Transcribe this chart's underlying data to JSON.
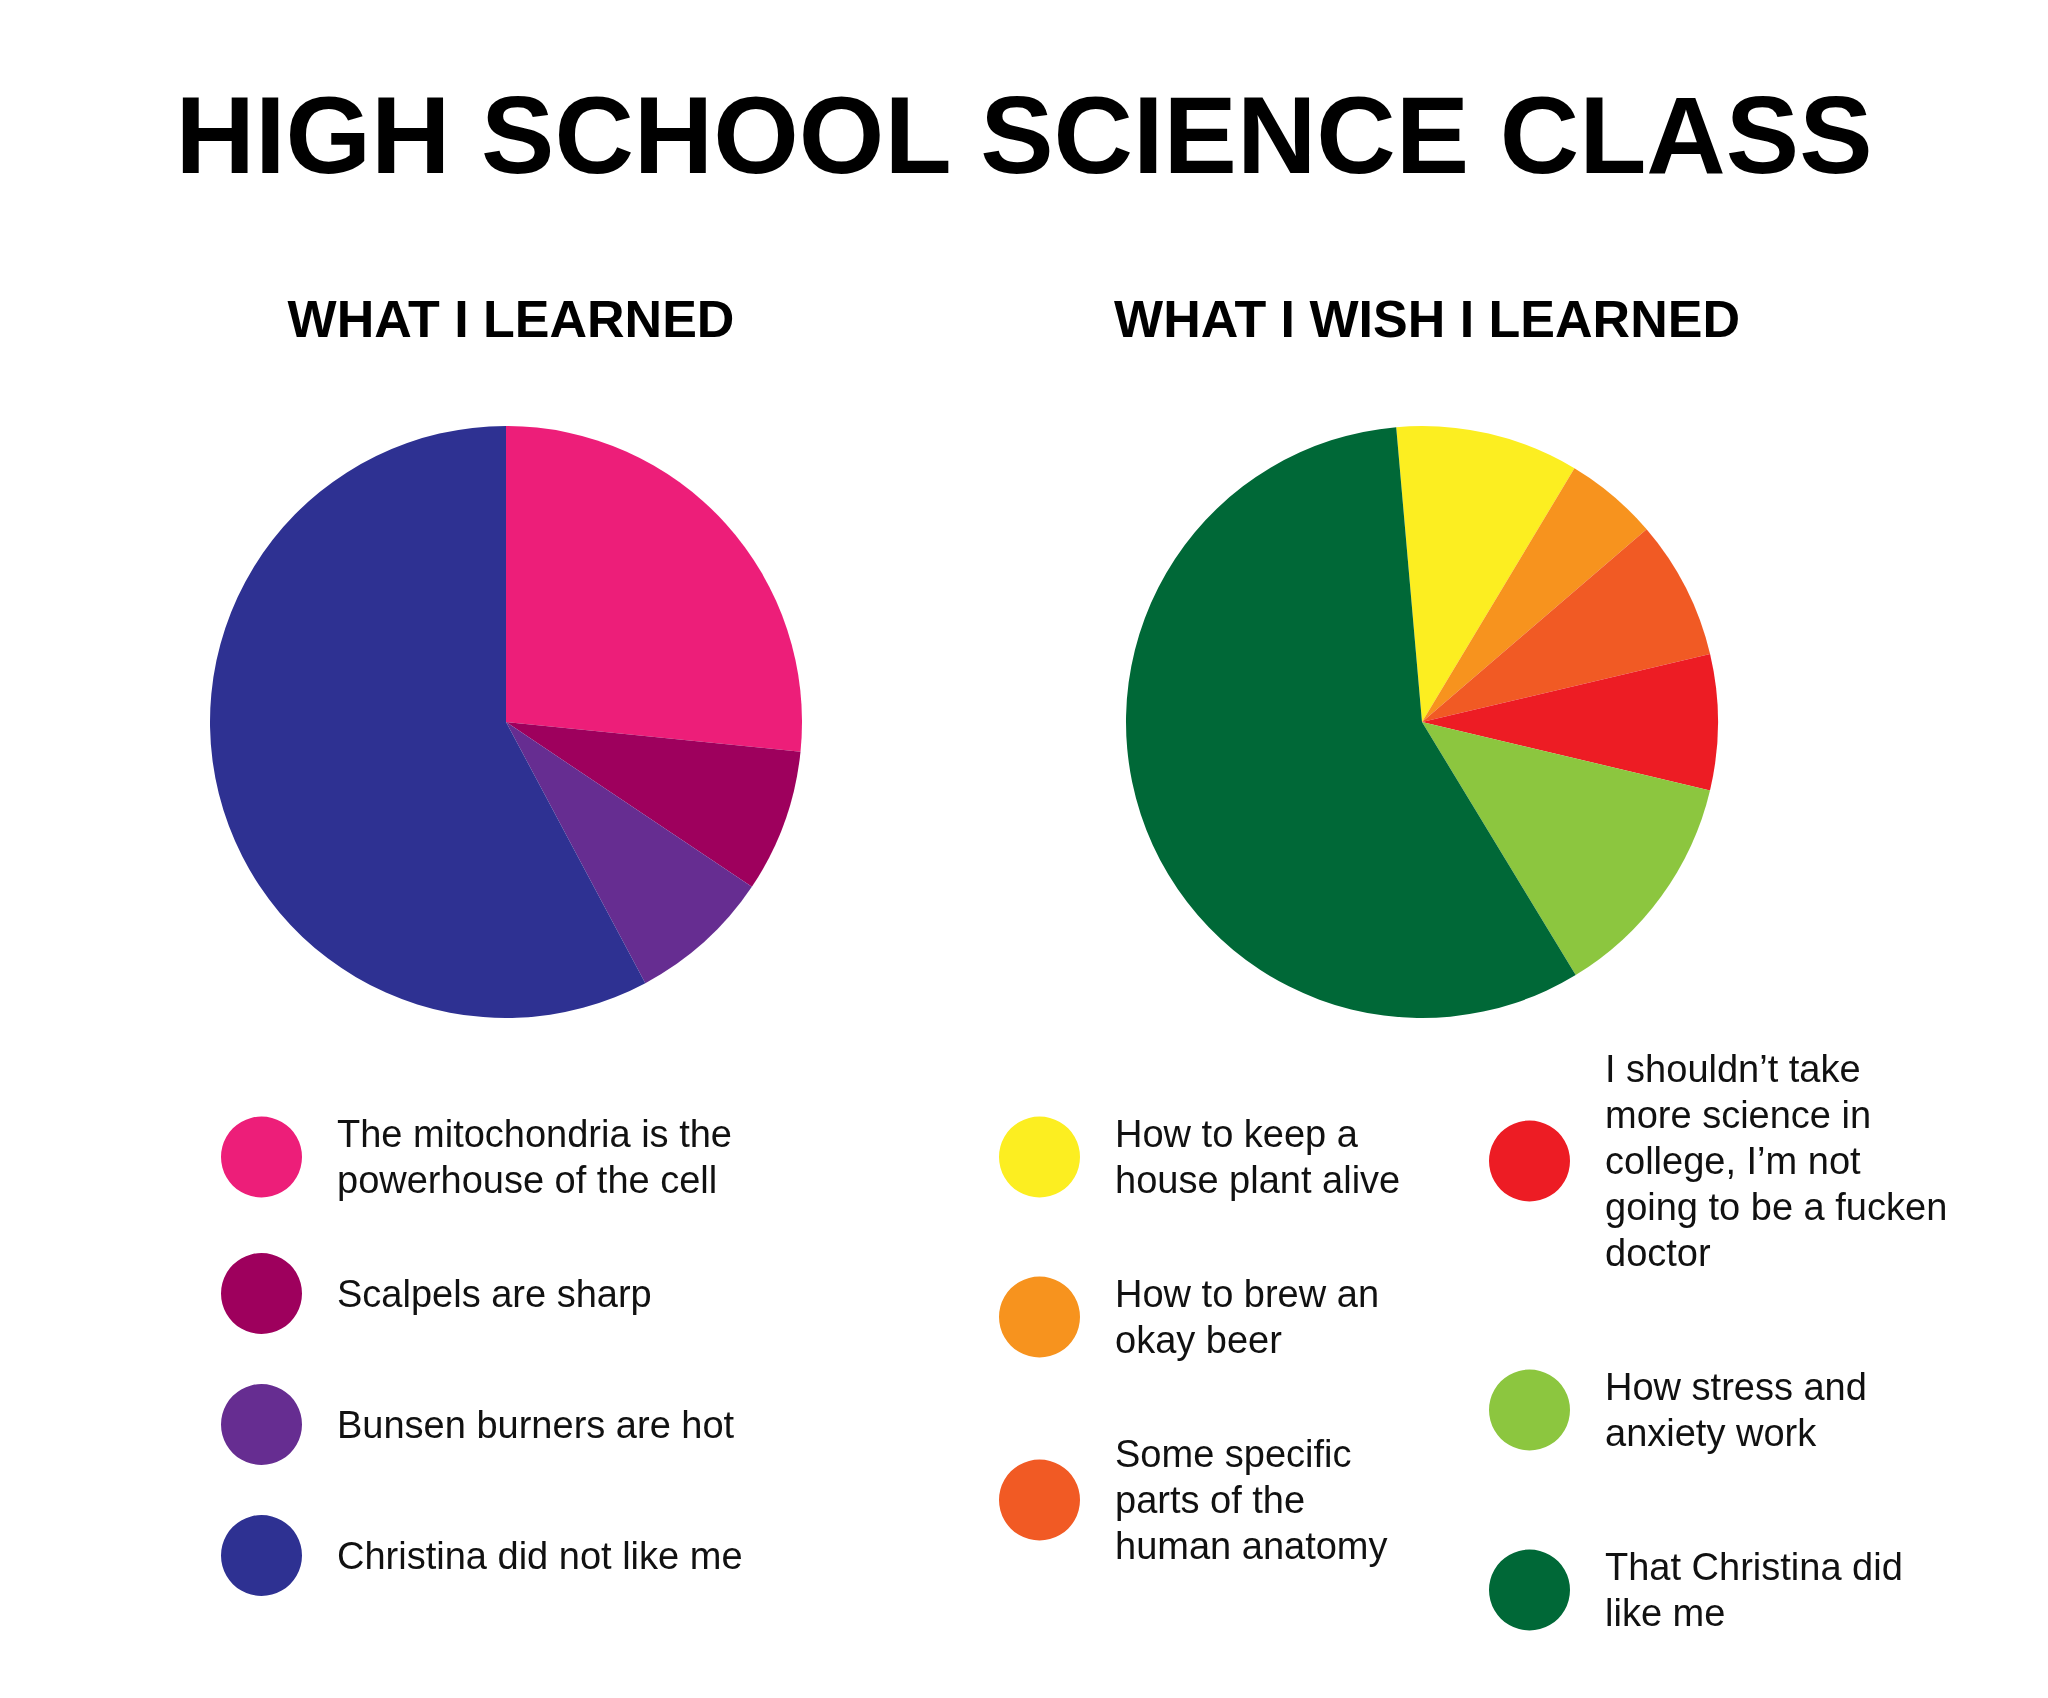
{
  "chart_data": [
    {
      "type": "pie",
      "title": "HIGH SCHOOL SCIENCE CLASS",
      "subtitle": "WHAT I LEARNED",
      "categories": [
        "The mitochondria is the powerhouse of the cell",
        "Scalpels are sharp",
        "Bunsen burners are hot",
        "Christina did not like me"
      ],
      "values": [
        26.6,
        7.8,
        7.8,
        57.8
      ],
      "colors": [
        "#ed1e79",
        "#9e005d",
        "#662d91",
        "#2e3192"
      ],
      "legend": "bottom"
    },
    {
      "type": "pie",
      "subtitle": "WHAT I WISH I LEARNED",
      "categories": [
        "How to keep a house plant alive",
        "How to brew an okay beer",
        "Some specific parts of the human anatomy",
        "I shouldn’t take more science in college, I’m not going to be a fucken doctor",
        "How stress and anxiety work",
        "That Christina did like me"
      ],
      "values": [
        10,
        5.1,
        7.6,
        7.4,
        12.6,
        57.3
      ],
      "colors": [
        "#fcee21",
        "#f7931e",
        "#f15a24",
        "#ed1c24",
        "#8cc63f",
        "#006837"
      ],
      "legend": "bottom"
    }
  ]
}
